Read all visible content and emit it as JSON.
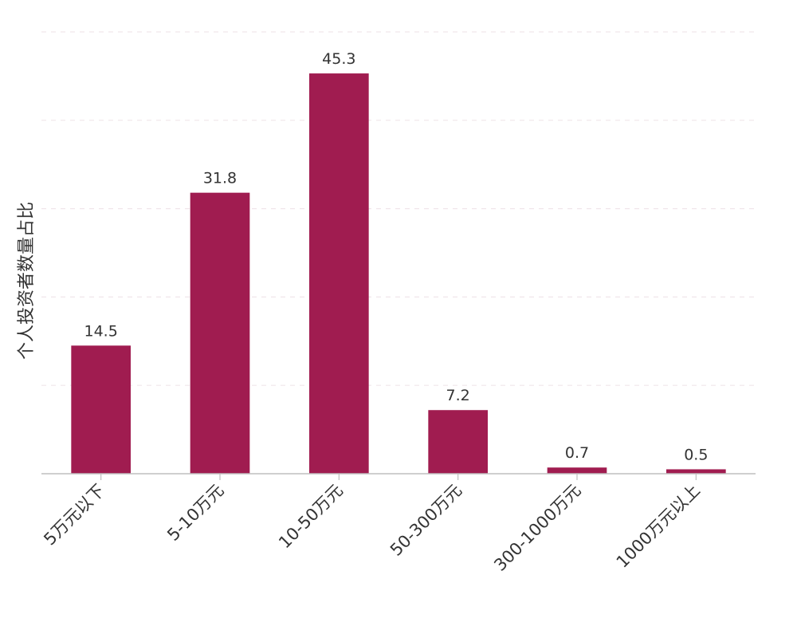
{
  "chart_data": {
    "type": "bar",
    "title": "",
    "xlabel": "",
    "ylabel": "个人投资者数量占比",
    "categories": [
      "5万元以下",
      "5-10万元",
      "10-50万元",
      "50-300万元",
      "300-1000万元",
      "1000万元以上"
    ],
    "values": [
      14.5,
      31.8,
      45.3,
      7.2,
      0.7,
      0.5
    ],
    "value_labels": [
      "14.5",
      "31.8",
      "45.3",
      "7.2",
      "0.7",
      "0.5"
    ],
    "ylim": [
      0,
      50
    ],
    "grid": true,
    "legend": "none",
    "colors": {
      "bar": "#a01c50",
      "axis": "#bfbfbf",
      "grid": "#f0e6ea",
      "text": "#333333"
    }
  }
}
